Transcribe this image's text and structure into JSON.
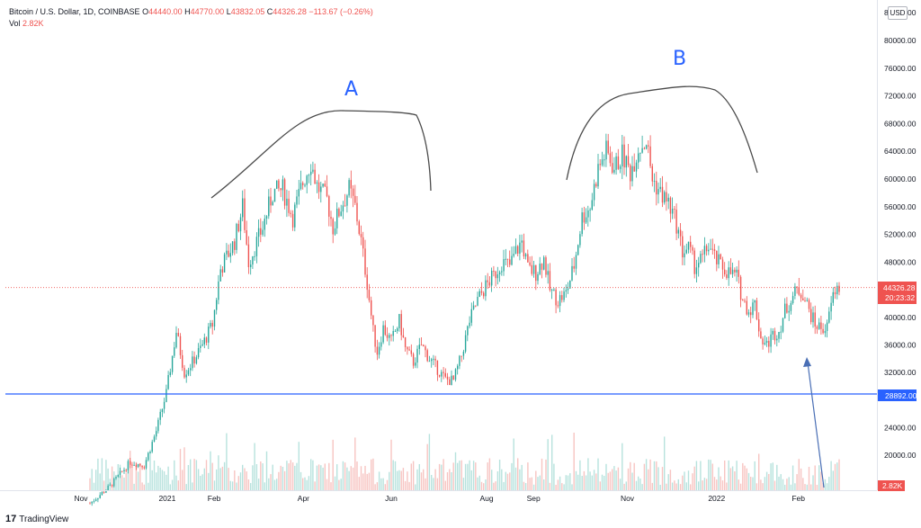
{
  "header": {
    "symbol": "Bitcoin / U.S. Dollar, 1D, COINBASE",
    "open_label": "O",
    "open": "44440.00",
    "high_label": "H",
    "high": "44770.00",
    "low_label": "L",
    "low": "43832.05",
    "close_label": "C",
    "close": "44326.28",
    "change": "−113.67 (−0.26%)",
    "vol_label": "Vol",
    "vol": "2.82K"
  },
  "currency_button": "USD",
  "footer": {
    "logo": "17",
    "brand": "TradingView"
  },
  "colors": {
    "up": "#26a69a",
    "down": "#ef5350",
    "support": "#2962ff",
    "annotation_text": "#2962ff",
    "annotation_line": "#4a4a4a",
    "arrow": "#4a6fb5"
  },
  "chart_data": {
    "type": "candlestick",
    "x_ticks": [
      "Nov",
      "2021",
      "Feb",
      "Apr",
      "Jun",
      "Aug",
      "Sep",
      "Nov",
      "2022",
      "Feb"
    ],
    "y_ticks": [
      "84000.00",
      "80000.00",
      "76000.00",
      "72000.00",
      "68000.00",
      "64000.00",
      "60000.00",
      "56000.00",
      "52000.00",
      "48000.00",
      "40000.00",
      "36000.00",
      "32000.00",
      "24000.00",
      "20000.00"
    ],
    "ylim": [
      16000,
      84000
    ],
    "price_path": [
      [
        0,
        13000
      ],
      [
        10,
        15500
      ],
      [
        20,
        19000
      ],
      [
        27,
        18500
      ],
      [
        33,
        23500
      ],
      [
        38,
        29000
      ],
      [
        43,
        38000
      ],
      [
        47,
        32000
      ],
      [
        51,
        33500
      ],
      [
        56,
        36000
      ],
      [
        61,
        39000
      ],
      [
        65,
        47000
      ],
      [
        72,
        51000
      ],
      [
        76,
        56000
      ],
      [
        79,
        48000
      ],
      [
        86,
        53000
      ],
      [
        91,
        58000
      ],
      [
        96,
        58500
      ],
      [
        101,
        54500
      ],
      [
        106,
        59500
      ],
      [
        110,
        62500
      ],
      [
        113,
        59000
      ],
      [
        118,
        57000
      ],
      [
        121,
        53000
      ],
      [
        125,
        56000
      ],
      [
        129,
        58500
      ],
      [
        132,
        56000
      ],
      [
        135,
        51000
      ],
      [
        138,
        45000
      ],
      [
        141,
        38000
      ],
      [
        143,
        35000
      ],
      [
        146,
        38500
      ],
      [
        150,
        36500
      ],
      [
        154,
        39500
      ],
      [
        157,
        35500
      ],
      [
        161,
        33500
      ],
      [
        165,
        36000
      ],
      [
        169,
        34000
      ],
      [
        173,
        32500
      ],
      [
        177,
        31000
      ],
      [
        181,
        30800
      ],
      [
        185,
        34500
      ],
      [
        189,
        39500
      ],
      [
        193,
        42500
      ],
      [
        197,
        44500
      ],
      [
        201,
        46000
      ],
      [
        205,
        48000
      ],
      [
        209,
        47500
      ],
      [
        212,
        49500
      ],
      [
        215,
        51000
      ],
      [
        218,
        47000
      ],
      [
        222,
        46500
      ],
      [
        226,
        48500
      ],
      [
        229,
        44000
      ],
      [
        233,
        42500
      ],
      [
        237,
        43500
      ],
      [
        241,
        47500
      ],
      [
        245,
        54500
      ],
      [
        249,
        56000
      ],
      [
        253,
        61500
      ],
      [
        257,
        64000
      ],
      [
        261,
        61500
      ],
      [
        265,
        63500
      ],
      [
        269,
        61000
      ],
      [
        273,
        64500
      ],
      [
        277,
        65500
      ],
      [
        280,
        60000
      ],
      [
        284,
        58000
      ],
      [
        288,
        56500
      ],
      [
        292,
        53500
      ],
      [
        295,
        49500
      ],
      [
        298,
        50000
      ],
      [
        301,
        47500
      ],
      [
        305,
        48500
      ],
      [
        308,
        50500
      ],
      [
        311,
        48500
      ],
      [
        314,
        47500
      ],
      [
        318,
        46500
      ],
      [
        322,
        46000
      ],
      [
        325,
        42500
      ],
      [
        328,
        41000
      ],
      [
        331,
        42000
      ],
      [
        334,
        37000
      ],
      [
        337,
        36000
      ],
      [
        340,
        37500
      ],
      [
        343,
        38000
      ],
      [
        346,
        41000
      ],
      [
        349,
        42500
      ],
      [
        352,
        44000
      ],
      [
        355,
        43500
      ],
      [
        358,
        41000
      ],
      [
        361,
        39000
      ],
      [
        364,
        38500
      ],
      [
        367,
        38500
      ],
      [
        369,
        42000
      ],
      [
        371,
        44000
      ],
      [
        373,
        44326.28
      ]
    ],
    "drawings": {
      "labels": [
        "A",
        "B"
      ],
      "support_level": 28892.0,
      "current_price": 44326.28,
      "countdown": "20:23:32",
      "volume_label": "2.82K"
    }
  }
}
